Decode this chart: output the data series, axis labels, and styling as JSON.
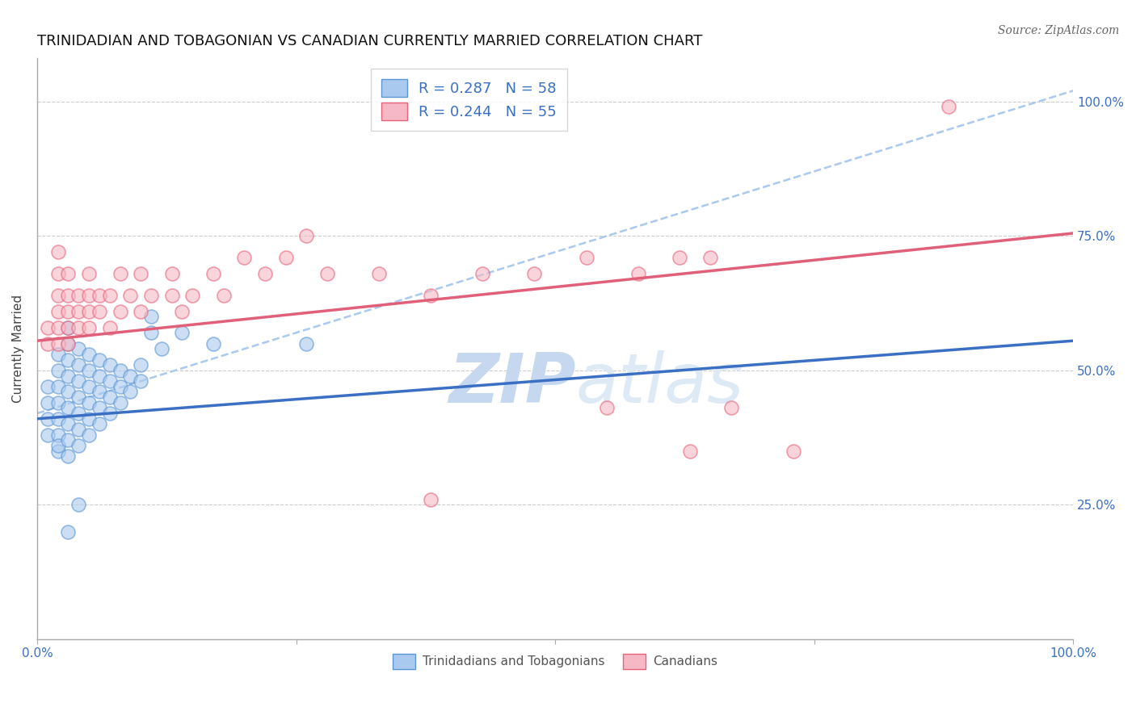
{
  "title": "TRINIDADIAN AND TOBAGONIAN VS CANADIAN CURRENTLY MARRIED CORRELATION CHART",
  "source": "Source: ZipAtlas.com",
  "ylabel": "Currently Married",
  "xlim": [
    0.0,
    1.0
  ],
  "ylim": [
    0.0,
    1.08
  ],
  "xticks": [
    0.0,
    0.25,
    0.5,
    0.75,
    1.0
  ],
  "xtick_labels": [
    "0.0%",
    "",
    "",
    "",
    "100.0%"
  ],
  "ytick_labels": [
    "25.0%",
    "50.0%",
    "75.0%",
    "100.0%"
  ],
  "yticks": [
    0.25,
    0.5,
    0.75,
    1.0
  ],
  "legend_r_blue": "R = 0.287",
  "legend_n_blue": "N = 58",
  "legend_r_pink": "R = 0.244",
  "legend_n_pink": "N = 55",
  "blue_color": "#aac9ee",
  "pink_color": "#f5b8c4",
  "blue_edge_color": "#5a96d3",
  "pink_edge_color": "#e8637a",
  "blue_line_color": "#3a6fc4",
  "pink_line_color": "#e0607a",
  "dashed_line_color": "#aac9ee",
  "watermark_zip": "ZIP",
  "watermark_atlas": "atlas",
  "title_fontsize": 13,
  "axis_fontsize": 11,
  "tick_fontsize": 11,
  "blue_scatter": [
    [
      0.01,
      0.38
    ],
    [
      0.01,
      0.41
    ],
    [
      0.01,
      0.44
    ],
    [
      0.01,
      0.47
    ],
    [
      0.02,
      0.35
    ],
    [
      0.02,
      0.38
    ],
    [
      0.02,
      0.41
    ],
    [
      0.02,
      0.44
    ],
    [
      0.02,
      0.47
    ],
    [
      0.02,
      0.5
    ],
    [
      0.02,
      0.53
    ],
    [
      0.02,
      0.36
    ],
    [
      0.03,
      0.34
    ],
    [
      0.03,
      0.37
    ],
    [
      0.03,
      0.4
    ],
    [
      0.03,
      0.43
    ],
    [
      0.03,
      0.46
    ],
    [
      0.03,
      0.49
    ],
    [
      0.03,
      0.52
    ],
    [
      0.03,
      0.55
    ],
    [
      0.03,
      0.58
    ],
    [
      0.04,
      0.36
    ],
    [
      0.04,
      0.39
    ],
    [
      0.04,
      0.42
    ],
    [
      0.04,
      0.45
    ],
    [
      0.04,
      0.48
    ],
    [
      0.04,
      0.51
    ],
    [
      0.04,
      0.54
    ],
    [
      0.05,
      0.38
    ],
    [
      0.05,
      0.41
    ],
    [
      0.05,
      0.44
    ],
    [
      0.05,
      0.47
    ],
    [
      0.05,
      0.5
    ],
    [
      0.05,
      0.53
    ],
    [
      0.06,
      0.4
    ],
    [
      0.06,
      0.43
    ],
    [
      0.06,
      0.46
    ],
    [
      0.06,
      0.49
    ],
    [
      0.06,
      0.52
    ],
    [
      0.07,
      0.42
    ],
    [
      0.07,
      0.45
    ],
    [
      0.07,
      0.48
    ],
    [
      0.07,
      0.51
    ],
    [
      0.08,
      0.44
    ],
    [
      0.08,
      0.47
    ],
    [
      0.08,
      0.5
    ],
    [
      0.09,
      0.46
    ],
    [
      0.09,
      0.49
    ],
    [
      0.1,
      0.48
    ],
    [
      0.1,
      0.51
    ],
    [
      0.11,
      0.57
    ],
    [
      0.11,
      0.6
    ],
    [
      0.12,
      0.54
    ],
    [
      0.14,
      0.57
    ],
    [
      0.17,
      0.55
    ],
    [
      0.26,
      0.55
    ],
    [
      0.04,
      0.25
    ],
    [
      0.03,
      0.2
    ]
  ],
  "pink_scatter": [
    [
      0.01,
      0.55
    ],
    [
      0.01,
      0.58
    ],
    [
      0.02,
      0.55
    ],
    [
      0.02,
      0.58
    ],
    [
      0.02,
      0.61
    ],
    [
      0.02,
      0.64
    ],
    [
      0.02,
      0.68
    ],
    [
      0.02,
      0.72
    ],
    [
      0.03,
      0.55
    ],
    [
      0.03,
      0.58
    ],
    [
      0.03,
      0.61
    ],
    [
      0.03,
      0.64
    ],
    [
      0.03,
      0.68
    ],
    [
      0.04,
      0.58
    ],
    [
      0.04,
      0.61
    ],
    [
      0.04,
      0.64
    ],
    [
      0.05,
      0.58
    ],
    [
      0.05,
      0.61
    ],
    [
      0.05,
      0.64
    ],
    [
      0.05,
      0.68
    ],
    [
      0.06,
      0.61
    ],
    [
      0.06,
      0.64
    ],
    [
      0.07,
      0.58
    ],
    [
      0.07,
      0.64
    ],
    [
      0.08,
      0.61
    ],
    [
      0.08,
      0.68
    ],
    [
      0.09,
      0.64
    ],
    [
      0.1,
      0.61
    ],
    [
      0.1,
      0.68
    ],
    [
      0.11,
      0.64
    ],
    [
      0.13,
      0.64
    ],
    [
      0.13,
      0.68
    ],
    [
      0.14,
      0.61
    ],
    [
      0.15,
      0.64
    ],
    [
      0.17,
      0.68
    ],
    [
      0.18,
      0.64
    ],
    [
      0.2,
      0.71
    ],
    [
      0.22,
      0.68
    ],
    [
      0.24,
      0.71
    ],
    [
      0.26,
      0.75
    ],
    [
      0.28,
      0.68
    ],
    [
      0.33,
      0.68
    ],
    [
      0.38,
      0.64
    ],
    [
      0.43,
      0.68
    ],
    [
      0.48,
      0.68
    ],
    [
      0.53,
      0.71
    ],
    [
      0.58,
      0.68
    ],
    [
      0.62,
      0.71
    ],
    [
      0.65,
      0.71
    ],
    [
      0.88,
      0.99
    ],
    [
      0.55,
      0.43
    ],
    [
      0.67,
      0.43
    ],
    [
      0.63,
      0.35
    ],
    [
      0.73,
      0.35
    ],
    [
      0.38,
      0.26
    ]
  ],
  "blue_trend": [
    0.0,
    0.41,
    1.0,
    0.555
  ],
  "pink_trend": [
    0.0,
    0.555,
    1.0,
    0.755
  ],
  "dashed_trend": [
    0.0,
    0.42,
    1.0,
    1.02
  ]
}
